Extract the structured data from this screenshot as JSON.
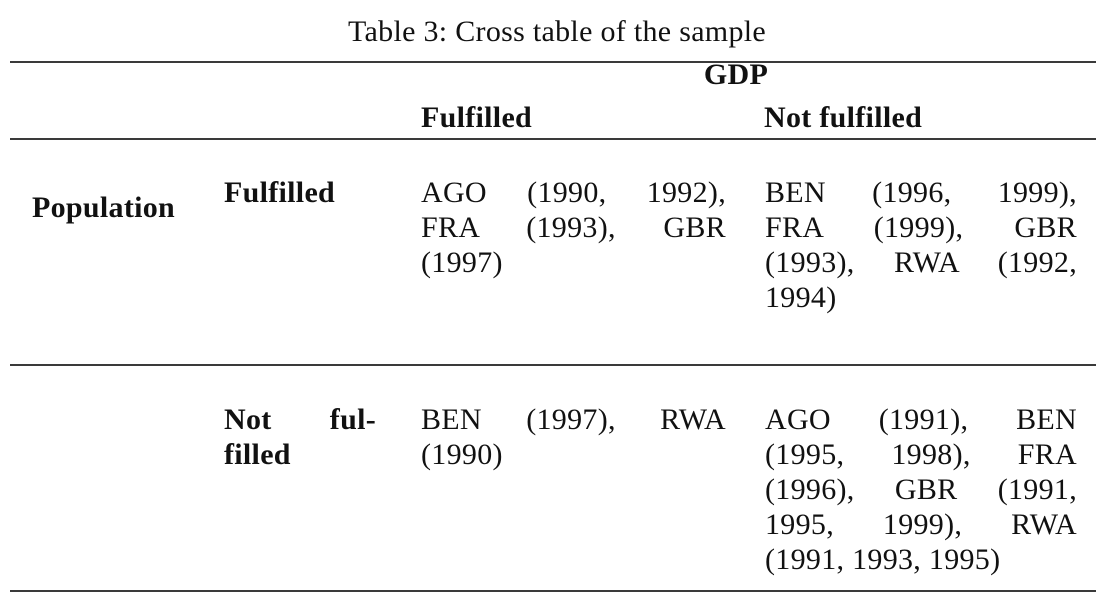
{
  "caption": "Table 3: Cross table of the sample",
  "colors": {
    "text": "#111111",
    "rule": "#3a3a3a",
    "background": "#ffffff"
  },
  "table": {
    "col_group": "GDP",
    "col_headers": [
      "Fulfilled",
      "Not fulfilled"
    ],
    "row_group": "Population",
    "rows": [
      {
        "label_text": "Fulfilled",
        "label_lines": [
          "Fulfilled"
        ],
        "cells": [
          {
            "column": "GDP Fulfilled",
            "text": "AGO (1990, 1992), FRA (1993), GBR (1997)",
            "lines": [
              "AGO (1990, 1992),",
              "FRA (1993), GBR",
              "(1997)"
            ]
          },
          {
            "column": "GDP Not fulfilled",
            "text": "BEN (1996, 1999), FRA (1999), GBR (1993), RWA (1992, 1994)",
            "lines": [
              "BEN (1996, 1999),",
              "FRA (1999), GBR",
              "(1993), RWA (1992,",
              "1994)"
            ]
          }
        ]
      },
      {
        "label_text": "Not fulfilled",
        "label_lines": [
          "Not ful-",
          "filled"
        ],
        "cells": [
          {
            "column": "GDP Fulfilled",
            "text": "BEN (1997), RWA (1990)",
            "lines": [
              "BEN (1997), RWA",
              "(1990)"
            ]
          },
          {
            "column": "GDP Not fulfilled",
            "text": "AGO (1991), BEN (1995, 1998), FRA (1996), GBR (1991, 1995, 1999), RWA (1991, 1993, 1995)",
            "lines": [
              "AGO (1991), BEN",
              "(1995, 1998), FRA",
              "(1996), GBR (1991,",
              "1995, 1999), RWA",
              "(1991, 1993, 1995)"
            ]
          }
        ]
      }
    ]
  }
}
